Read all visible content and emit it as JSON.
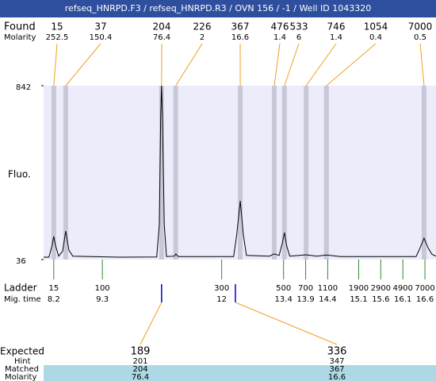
{
  "header": "refseq_HNRPD.F3 / refseq_HNRPD.R3 / OVN 156 / -1 / Well ID 1043320",
  "chart_data": {
    "type": "line",
    "y_label": "Fluo.",
    "color": "#000000",
    "xlim": [
      7.97,
      16.85
    ],
    "ylim": [
      36,
      842
    ],
    "yticks": [
      36,
      842
    ],
    "x": [
      7.97,
      8.09,
      8.16,
      8.2,
      8.24,
      8.31,
      8.4,
      8.47,
      8.54,
      8.63,
      9.67,
      10.53,
      10.59,
      10.62,
      10.64,
      10.66,
      10.7,
      10.75,
      10.93,
      10.96,
      11.02,
      12.27,
      12.34,
      12.42,
      12.49,
      12.56,
      13.08,
      13.19,
      13.3,
      13.37,
      13.42,
      13.47,
      13.54,
      13.91,
      14.15,
      14.37,
      14.69,
      16.4,
      16.49,
      16.58,
      16.67,
      16.76,
      16.85
    ],
    "values": [
      47,
      47,
      100,
      143,
      100,
      52,
      75,
      168,
      80,
      52,
      47,
      48,
      200,
      700,
      842,
      700,
      200,
      50,
      52,
      62,
      50,
      50,
      150,
      308,
      150,
      55,
      52,
      62,
      55,
      110,
      161,
      100,
      52,
      58,
      52,
      57,
      50,
      50,
      90,
      135,
      90,
      60,
      52
    ]
  },
  "found": {
    "label": "Found",
    "molarity_label": "Molarity",
    "sizes": [
      15,
      37,
      204,
      226,
      367,
      476,
      533,
      746,
      1054,
      7000
    ],
    "molarity": [
      252.5,
      150.4,
      76.4,
      2,
      16.6,
      1.4,
      6,
      1.4,
      0.4,
      0.5
    ],
    "times": [
      8.2,
      8.47,
      10.64,
      10.96,
      12.42,
      13.19,
      13.42,
      13.91,
      14.37,
      16.58
    ]
  },
  "ladder": {
    "label": "Ladder",
    "time_label": "Mig. time",
    "sizes": [
      15,
      100,
      300,
      500,
      700,
      1100,
      1900,
      2900,
      4900,
      7000
    ],
    "times": [
      8.2,
      9.3,
      12,
      13.4,
      13.9,
      14.4,
      15.1,
      15.6,
      16.1,
      16.6
    ]
  },
  "expected": {
    "label": "Expected",
    "hint_label": "Hint",
    "matched_label": "Matched",
    "molarity_label": "Molarity",
    "sizes": [
      189,
      336
    ],
    "times": [
      10.64,
      12.31
    ],
    "hint": [
      201,
      347
    ],
    "matched": [
      204,
      367
    ],
    "molarity": [
      76.4,
      16.6
    ]
  }
}
